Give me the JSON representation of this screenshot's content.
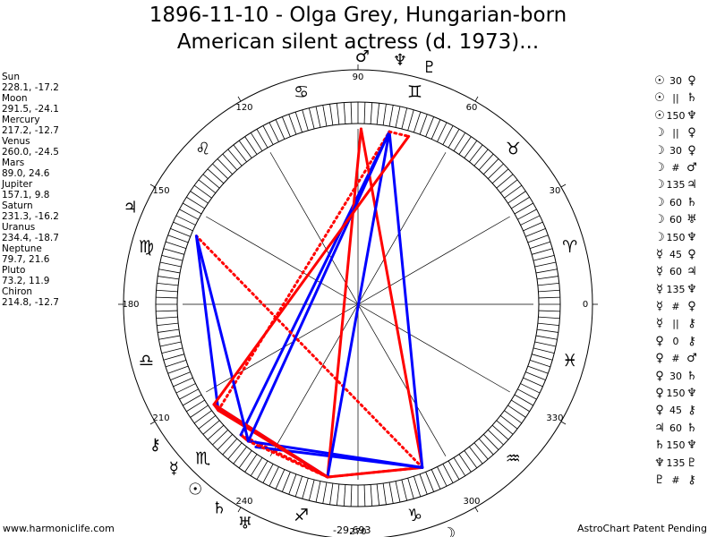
{
  "title": {
    "line1": "1896-11-10 - Olga Grey, Hungarian-born",
    "line2": "American silent actress (d. 1973)..."
  },
  "planets": [
    {
      "name": "Sun",
      "symbol": "☉",
      "longitude": 228.1,
      "latitude": -17.2,
      "value": "228.1, -17.2"
    },
    {
      "name": "Moon",
      "symbol": "☽",
      "longitude": 291.5,
      "latitude": -24.1,
      "value": "291.5, -24.1"
    },
    {
      "name": "Mercury",
      "symbol": "☿",
      "longitude": 217.2,
      "latitude": -12.7,
      "value": "217.2, -12.7"
    },
    {
      "name": "Venus",
      "symbol": "♀",
      "longitude": 260.0,
      "latitude": -24.5,
      "value": "260.0, -24.5"
    },
    {
      "name": "Mars",
      "symbol": "♂",
      "longitude": 89.0,
      "latitude": 24.6,
      "value": "89.0, 24.6"
    },
    {
      "name": "Jupiter",
      "symbol": "♃",
      "longitude": 157.1,
      "latitude": 9.8,
      "value": "157.1, 9.8"
    },
    {
      "name": "Saturn",
      "symbol": "♄",
      "longitude": 231.3,
      "latitude": -16.2,
      "value": "231.3, -16.2"
    },
    {
      "name": "Uranus",
      "symbol": "♅",
      "longitude": 234.4,
      "latitude": -18.7,
      "value": "234.4, -18.7"
    },
    {
      "name": "Neptune",
      "symbol": "♆",
      "longitude": 79.7,
      "latitude": 21.6,
      "value": "79.7, 21.6"
    },
    {
      "name": "Pluto",
      "symbol": "♇",
      "longitude": 73.2,
      "latitude": 11.9,
      "value": "73.2, 11.9"
    },
    {
      "name": "Chiron",
      "symbol": "⚷",
      "longitude": 214.8,
      "latitude": -12.7,
      "value": "214.8, -12.7"
    }
  ],
  "aspects": [
    {
      "p1": "Sun",
      "g1": "☉",
      "aspect": "30",
      "g2": "♀",
      "p2": "Venus",
      "color": "#ff0000",
      "style": "dotted"
    },
    {
      "p1": "Sun",
      "g1": "☉",
      "aspect": "||",
      "g2": "♄",
      "p2": "Saturn",
      "color": "#ff0000",
      "style": "solid"
    },
    {
      "p1": "Sun",
      "g1": "☉",
      "aspect": "150",
      "g2": "♆",
      "p2": "Neptune",
      "color": "#0000ff",
      "style": "solid"
    },
    {
      "p1": "Moon",
      "g1": "☽",
      "aspect": "||",
      "g2": "♀",
      "p2": "Venus",
      "color": "#ff0000",
      "style": "solid"
    },
    {
      "p1": "Moon",
      "g1": "☽",
      "aspect": "30",
      "g2": "♀",
      "p2": "Venus",
      "color": "#ff0000",
      "style": "dotted"
    },
    {
      "p1": "Moon",
      "g1": "☽",
      "aspect": "#",
      "g2": "♂",
      "p2": "Mars",
      "color": "#ff0000",
      "style": "solid"
    },
    {
      "p1": "Moon",
      "g1": "☽",
      "aspect": "135",
      "g2": "♃",
      "p2": "Jupiter",
      "color": "#ff0000",
      "style": "dotted"
    },
    {
      "p1": "Moon",
      "g1": "☽",
      "aspect": "60",
      "g2": "♄",
      "p2": "Saturn",
      "color": "#0000ff",
      "style": "solid"
    },
    {
      "p1": "Moon",
      "g1": "☽",
      "aspect": "60",
      "g2": "♅",
      "p2": "Uranus",
      "color": "#0000ff",
      "style": "solid"
    },
    {
      "p1": "Moon",
      "g1": "☽",
      "aspect": "150",
      "g2": "♆",
      "p2": "Neptune",
      "color": "#0000ff",
      "style": "solid"
    },
    {
      "p1": "Mercury",
      "g1": "☿",
      "aspect": "45",
      "g2": "♀",
      "p2": "Venus",
      "color": "#ff0000",
      "style": "solid"
    },
    {
      "p1": "Mercury",
      "g1": "☿",
      "aspect": "60",
      "g2": "♃",
      "p2": "Jupiter",
      "color": "#0000ff",
      "style": "solid"
    },
    {
      "p1": "Mercury",
      "g1": "☿",
      "aspect": "135",
      "g2": "♆",
      "p2": "Neptune",
      "color": "#ff0000",
      "style": "dotted"
    },
    {
      "p1": "Mercury",
      "g1": "☿",
      "aspect": "#",
      "g2": "♀",
      "p2": "Venus",
      "color": "#ff0000",
      "style": "solid"
    },
    {
      "p1": "Mercury",
      "g1": "☿",
      "aspect": "||",
      "g2": "⚷",
      "p2": "Chiron",
      "color": "#ff0000",
      "style": "solid"
    },
    {
      "p1": "Venus",
      "g1": "♀",
      "aspect": "0",
      "g2": "⚷",
      "p2": "Chiron",
      "color": "#0000ff",
      "style": "solid"
    },
    {
      "p1": "Venus",
      "g1": "♀",
      "aspect": "#",
      "g2": "♂",
      "p2": "Mars",
      "color": "#ff0000",
      "style": "solid"
    },
    {
      "p1": "Venus",
      "g1": "♀",
      "aspect": "30",
      "g2": "♄",
      "p2": "Saturn",
      "color": "#ff0000",
      "style": "dotted"
    },
    {
      "p1": "Venus",
      "g1": "♀",
      "aspect": "150",
      "g2": "♆",
      "p2": "Neptune",
      "color": "#0000ff",
      "style": "solid"
    },
    {
      "p1": "Venus",
      "g1": "♀",
      "aspect": "45",
      "g2": "⚷",
      "p2": "Chiron",
      "color": "#ff0000",
      "style": "solid"
    },
    {
      "p1": "Jupiter",
      "g1": "♃",
      "aspect": "60",
      "g2": "♄",
      "p2": "Saturn",
      "color": "#0000ff",
      "style": "solid"
    },
    {
      "p1": "Saturn",
      "g1": "♄",
      "aspect": "150",
      "g2": "♆",
      "p2": "Neptune",
      "color": "#0000ff",
      "style": "solid"
    },
    {
      "p1": "Neptune",
      "g1": "♆",
      "aspect": "135",
      "g2": "♇",
      "p2": "Pluto",
      "color": "#ff0000",
      "style": "dotted"
    },
    {
      "p1": "Pluto",
      "g1": "♇",
      "aspect": "#",
      "g2": "⚷",
      "p2": "Chiron",
      "color": "#ff0000",
      "style": "solid"
    }
  ],
  "wheel": {
    "degree_labels": [
      "0",
      "30",
      "60",
      "90",
      "120",
      "150",
      "180",
      "210",
      "240",
      "270",
      "300",
      "330"
    ],
    "signs": [
      {
        "name": "Aries",
        "glyph": "♈"
      },
      {
        "name": "Taurus",
        "glyph": "♉"
      },
      {
        "name": "Gemini",
        "glyph": "♊"
      },
      {
        "name": "Cancer",
        "glyph": "♋"
      },
      {
        "name": "Leo",
        "glyph": "♌"
      },
      {
        "name": "Virgo",
        "glyph": "♍"
      },
      {
        "name": "Libra",
        "glyph": "♎"
      },
      {
        "name": "Scorpio",
        "glyph": "♏"
      },
      {
        "name": "Sagittarius",
        "glyph": "♐"
      },
      {
        "name": "Capricorn",
        "glyph": "♑"
      },
      {
        "name": "Aquarius",
        "glyph": "♒"
      },
      {
        "name": "Pisces",
        "glyph": "♓"
      }
    ],
    "colors": {
      "hard": "#ff0000",
      "soft": "#0000ff",
      "ring": "#000000"
    }
  },
  "footer": {
    "site": "www.harmoniclife.com",
    "score": "-29,693",
    "patent": "AstroChart Patent Pending"
  }
}
